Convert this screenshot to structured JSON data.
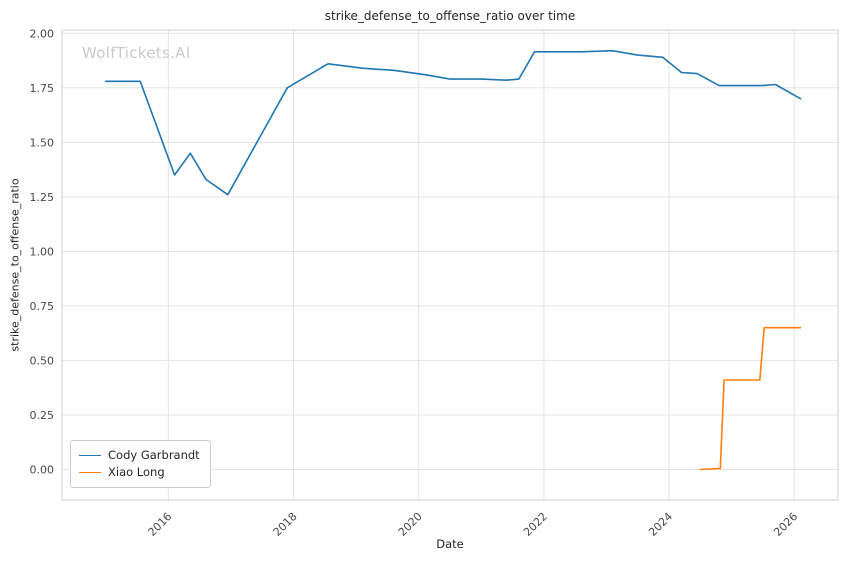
{
  "chart_data": {
    "type": "line",
    "title": "strike_defense_to_offense_ratio over time",
    "xlabel": "Date",
    "ylabel": "strike_defense_to_offense_ratio",
    "watermark": "WolfTickets.AI",
    "grid": true,
    "legend_position": "lower left",
    "xlim": [
      2014.3,
      2026.7
    ],
    "ylim": [
      -0.14,
      2.015
    ],
    "xticks": [
      2016,
      2018,
      2020,
      2022,
      2024,
      2026
    ],
    "yticks": [
      0.0,
      0.25,
      0.5,
      0.75,
      1.0,
      1.25,
      1.5,
      1.75,
      2.0
    ],
    "series": [
      {
        "name": "Cody Garbrandt",
        "color": "#1f77b4",
        "x": [
          2015.0,
          2015.55,
          2016.1,
          2016.35,
          2016.6,
          2016.95,
          2017.9,
          2018.55,
          2019.1,
          2019.6,
          2020.1,
          2020.5,
          2021.0,
          2021.4,
          2021.6,
          2021.85,
          2022.6,
          2023.1,
          2023.5,
          2023.9,
          2024.2,
          2024.45,
          2024.8,
          2025.2,
          2025.5,
          2025.7,
          2026.1
        ],
        "y": [
          1.78,
          1.78,
          1.35,
          1.45,
          1.33,
          1.26,
          1.75,
          1.86,
          1.84,
          1.83,
          1.81,
          1.79,
          1.79,
          1.785,
          1.79,
          1.915,
          1.915,
          1.92,
          1.9,
          1.89,
          1.82,
          1.815,
          1.76,
          1.76,
          1.76,
          1.765,
          1.7
        ]
      },
      {
        "name": "Xiao Long",
        "color": "#ff7f0e",
        "x": [
          2024.5,
          2024.82,
          2024.88,
          2025.35,
          2025.45,
          2025.52,
          2025.7,
          2026.1
        ],
        "y": [
          0.0,
          0.005,
          0.41,
          0.41,
          0.41,
          0.65,
          0.65,
          0.65
        ]
      }
    ]
  }
}
